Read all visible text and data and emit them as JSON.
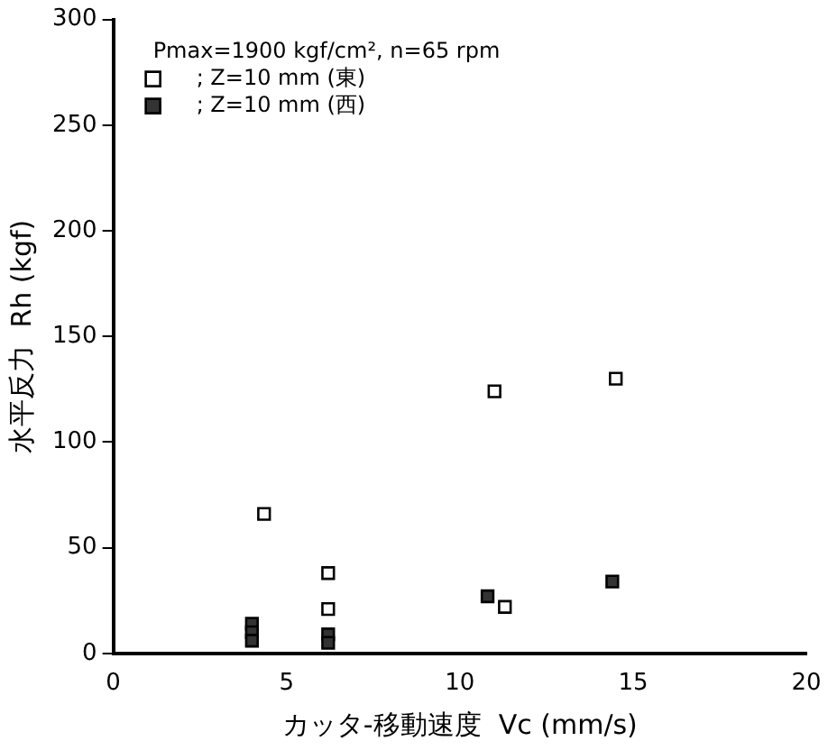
{
  "chart_data": {
    "type": "scatter",
    "xlabel": "カッタ-移動速度  Vc (mm/s)",
    "ylabel": "水平反力  Rh (kgf)",
    "annotations": [
      "Pmax=1900 kgf/cm², n=65 rpm"
    ],
    "series": [
      {
        "name": "; Z=10 mm (東)",
        "color": "#ffffff",
        "x": [
          4.35,
          6.2,
          6.2,
          11.0,
          11.3,
          14.5
        ],
        "values": [
          66,
          38,
          21,
          124,
          22,
          130
        ]
      },
      {
        "name": "; Z=10 mm (西)",
        "color": "#333333",
        "x": [
          4.0,
          4.0,
          4.0,
          6.2,
          6.2,
          10.8,
          14.4
        ],
        "values": [
          14,
          10,
          6,
          9,
          5,
          27,
          34
        ]
      }
    ],
    "xlim": [
      0,
      20
    ],
    "xticks": [
      0,
      5,
      10,
      15,
      20
    ],
    "ylim": [
      0,
      300
    ],
    "yticks": [
      0,
      50,
      100,
      150,
      200,
      250,
      300
    ],
    "grid": false,
    "legend": "top left",
    "marker": "square"
  }
}
